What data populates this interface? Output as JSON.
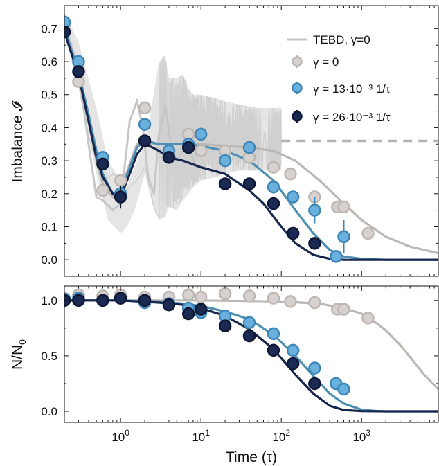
{
  "colors": {
    "tebd_line": "#c6c6c6",
    "tebd_band": "#d0d0d0",
    "series": [
      "#d7d2cf",
      "#6ab0dc",
      "#1b2a52"
    ],
    "series_edge": [
      "#bdb7b3",
      "#3f86b8",
      "#0e1834"
    ],
    "fit": [
      "#bbb7b4",
      "#4f8fb2",
      "#16264c"
    ],
    "steady_state_dash": "#b3b3b3"
  },
  "chart_data": [
    {
      "type": "line",
      "panel": "top",
      "ylabel": "Imbalance 𝓘",
      "xscale": "log",
      "xlim": [
        0.2,
        9000
      ],
      "ylim": [
        -0.05,
        0.77
      ],
      "yticks": [
        0.0,
        0.1,
        0.2,
        0.3,
        0.4,
        0.5,
        0.6,
        0.7
      ],
      "ytick_labels": [
        "0.0",
        "0.1",
        "0.2",
        "0.3",
        "0.4",
        "0.5",
        "0.6",
        "0.7"
      ],
      "legend_position": "top-right",
      "legend": [
        {
          "kind": "line",
          "label": "TEBD, γ=0"
        },
        {
          "kind": "marker",
          "series": 0,
          "label": "γ = 0"
        },
        {
          "kind": "marker",
          "series": 1,
          "label": "γ = 13·10⁻³ 1/τ"
        },
        {
          "kind": "marker",
          "series": 2,
          "label": "γ = 26·10⁻³ 1/τ"
        }
      ],
      "tebd": {
        "steady_state": 0.36,
        "steady_state_from": 100,
        "envelope": {
          "x": [
            0.2,
            0.3,
            0.5,
            0.7,
            1.0,
            1.2,
            1.5,
            2.0,
            2.5,
            3.0,
            3.6,
            4.0,
            5.0,
            6.0,
            7.0,
            8.0,
            10,
            15,
            20,
            30,
            50,
            70,
            100
          ],
          "upper": [
            0.75,
            0.66,
            0.46,
            0.3,
            0.24,
            0.22,
            0.28,
            0.36,
            0.48,
            0.6,
            0.62,
            0.55,
            0.55,
            0.56,
            0.52,
            0.5,
            0.5,
            0.49,
            0.48,
            0.47,
            0.46,
            0.46,
            0.46
          ],
          "lower": [
            0.68,
            0.52,
            0.26,
            0.12,
            0.08,
            0.1,
            0.15,
            0.26,
            0.17,
            0.12,
            0.13,
            0.16,
            0.15,
            0.18,
            0.2,
            0.22,
            0.24,
            0.25,
            0.26,
            0.27,
            0.27,
            0.27,
            0.27
          ]
        },
        "line": {
          "x": [
            0.2,
            0.3,
            0.4,
            0.5,
            0.6,
            0.8,
            1.0,
            1.3,
            1.6,
            1.9,
            2.2,
            2.6,
            3.0,
            3.6,
            4.2,
            5.0,
            6.0,
            7.0,
            8.0,
            9.0,
            10
          ],
          "y": [
            0.72,
            0.58,
            0.35,
            0.19,
            0.18,
            0.15,
            0.17,
            0.42,
            0.48,
            0.4,
            0.25,
            0.2,
            0.38,
            0.47,
            0.35,
            0.3,
            0.33,
            0.36,
            0.3,
            0.28,
            0.28
          ]
        }
      },
      "series": [
        {
          "x": [
            0.2,
            0.3,
            0.6,
            1.0,
            2.0,
            4.0,
            7.0,
            10,
            20,
            40,
            80,
            130,
            260,
            500,
            600,
            1200
          ],
          "y": [
            0.71,
            0.54,
            0.21,
            0.24,
            0.46,
            0.33,
            0.38,
            0.33,
            0.33,
            0.31,
            0.28,
            0.26,
            0.19,
            0.16,
            0.16,
            0.08
          ],
          "err": [
            0.01,
            0.01,
            0.01,
            0.015,
            0.015,
            0.01,
            0.015,
            0.015,
            0.01,
            0.01,
            0.01,
            0.01,
            0.02,
            0.01,
            0.015,
            0.01
          ]
        },
        {
          "x": [
            0.2,
            0.3,
            0.6,
            1.0,
            2.0,
            4.0,
            7.0,
            10,
            20,
            40,
            80,
            140,
            260,
            480,
            600
          ],
          "y": [
            0.72,
            0.6,
            0.31,
            0.2,
            0.41,
            0.33,
            0.35,
            0.38,
            0.3,
            0.34,
            0.22,
            0.19,
            0.15,
            0.01,
            0.07
          ],
          "err": [
            0.01,
            0.015,
            0.01,
            0.015,
            0.02,
            0.01,
            0.02,
            0.02,
            0.01,
            0.015,
            0.015,
            0.015,
            0.04,
            0.01,
            0.05
          ]
        },
        {
          "x": [
            0.2,
            0.3,
            0.6,
            1.0,
            2.0,
            4.0,
            7.0,
            20,
            40,
            80,
            140,
            260
          ],
          "y": [
            0.69,
            0.57,
            0.29,
            0.19,
            0.36,
            0.31,
            0.34,
            0.23,
            0.23,
            0.17,
            0.08,
            0.05
          ],
          "err": [
            0.015,
            0.01,
            0.01,
            0.035,
            0.015,
            0.01,
            0.015,
            0.01,
            0.01,
            0.01,
            0.01,
            0.01
          ]
        }
      ],
      "fits": [
        {
          "x": [
            0.2,
            0.3,
            0.4,
            0.5,
            0.6,
            0.8,
            1.0,
            1.3,
            1.6,
            2.0,
            2.5,
            3.0,
            4.0,
            6.0,
            10,
            20,
            40,
            80,
            150,
            300,
            600,
            1000,
            2000,
            4000,
            9000
          ],
          "y": [
            0.7,
            0.55,
            0.42,
            0.3,
            0.23,
            0.19,
            0.21,
            0.29,
            0.35,
            0.35,
            0.35,
            0.35,
            0.35,
            0.35,
            0.35,
            0.345,
            0.34,
            0.33,
            0.3,
            0.24,
            0.17,
            0.12,
            0.07,
            0.04,
            0.02
          ]
        },
        {
          "x": [
            0.2,
            0.3,
            0.4,
            0.5,
            0.6,
            0.8,
            1.0,
            1.3,
            1.6,
            2.0,
            2.5,
            3.0,
            4.0,
            6.0,
            10,
            20,
            40,
            80,
            150,
            250,
            400,
            600,
            1000,
            2000,
            9000
          ],
          "y": [
            0.7,
            0.57,
            0.44,
            0.33,
            0.26,
            0.2,
            0.2,
            0.28,
            0.34,
            0.36,
            0.355,
            0.35,
            0.35,
            0.35,
            0.345,
            0.33,
            0.3,
            0.24,
            0.15,
            0.08,
            0.03,
            0.01,
            0.003,
            0.0,
            0.0
          ]
        },
        {
          "x": [
            0.2,
            0.3,
            0.4,
            0.5,
            0.6,
            0.8,
            1.0,
            1.3,
            1.6,
            2.0,
            2.5,
            3.0,
            4.0,
            6.0,
            10,
            20,
            40,
            60,
            100,
            150,
            250,
            400,
            600,
            1000,
            9000
          ],
          "y": [
            0.69,
            0.56,
            0.42,
            0.31,
            0.25,
            0.2,
            0.19,
            0.26,
            0.32,
            0.35,
            0.34,
            0.33,
            0.31,
            0.3,
            0.28,
            0.26,
            0.21,
            0.17,
            0.1,
            0.05,
            0.015,
            0.003,
            0.0,
            0.0,
            0.0
          ]
        }
      ]
    },
    {
      "type": "line",
      "panel": "bottom",
      "ylabel": "N/N0",
      "xlabel": "Time (τ)",
      "xscale": "log",
      "xlim": [
        0.2,
        9000
      ],
      "ylim": [
        -0.1,
        1.13
      ],
      "yticks": [
        0.0,
        0.5,
        1.0
      ],
      "ytick_labels": [
        "0.0",
        "0.5",
        "1.0"
      ],
      "xticks": [
        1,
        10,
        100,
        1000
      ],
      "xtick_labels": [
        [
          "10",
          "0"
        ],
        [
          "10",
          "1"
        ],
        [
          "10",
          "2"
        ],
        [
          "10",
          "3"
        ]
      ],
      "series": [
        {
          "x": [
            0.2,
            0.3,
            0.6,
            1.0,
            2.0,
            4.0,
            7.0,
            10,
            20,
            40,
            80,
            130,
            260,
            500,
            600,
            1200
          ],
          "y": [
            1.02,
            1.05,
            1.04,
            1.05,
            1.03,
            1.03,
            1.05,
            1.03,
            1.06,
            1.04,
            1.02,
            0.99,
            0.98,
            0.92,
            0.92,
            0.84
          ]
        },
        {
          "x": [
            0.2,
            0.3,
            0.6,
            1.0,
            2.0,
            4.0,
            7.0,
            10,
            20,
            40,
            80,
            140,
            260,
            480,
            600
          ],
          "y": [
            1.01,
            1.02,
            1.0,
            1.02,
            0.98,
            0.97,
            0.93,
            0.89,
            0.86,
            0.8,
            0.7,
            0.55,
            0.39,
            0.25,
            0.2
          ]
        },
        {
          "x": [
            0.2,
            0.3,
            0.6,
            1.0,
            2.0,
            4.0,
            7.0,
            10,
            20,
            40,
            80,
            140,
            260
          ],
          "y": [
            1.0,
            1.0,
            1.0,
            1.02,
            1.0,
            0.96,
            0.88,
            0.92,
            0.77,
            0.68,
            0.55,
            0.43,
            0.25
          ]
        }
      ],
      "fits": [
        {
          "x": [
            0.2,
            1,
            10,
            100,
            300,
            600,
            1000,
            1500,
            2000,
            3000,
            4000,
            6000,
            9000
          ],
          "y": [
            1.0,
            1.0,
            1.0,
            0.99,
            0.97,
            0.93,
            0.88,
            0.8,
            0.73,
            0.6,
            0.49,
            0.33,
            0.2
          ]
        },
        {
          "x": [
            0.2,
            1,
            3,
            6,
            10,
            20,
            40,
            80,
            150,
            250,
            400,
            600,
            1000,
            1500,
            2000,
            9000
          ],
          "y": [
            1.0,
            1.0,
            0.99,
            0.97,
            0.95,
            0.9,
            0.83,
            0.69,
            0.5,
            0.32,
            0.16,
            0.07,
            0.015,
            0.003,
            0.0,
            0.0
          ]
        },
        {
          "x": [
            0.2,
            1,
            3,
            6,
            10,
            20,
            40,
            80,
            150,
            250,
            400,
            600,
            1000,
            2000,
            9000
          ],
          "y": [
            1.0,
            1.0,
            0.98,
            0.96,
            0.93,
            0.86,
            0.74,
            0.56,
            0.33,
            0.16,
            0.05,
            0.012,
            0.002,
            0.0,
            0.0
          ]
        }
      ]
    }
  ]
}
